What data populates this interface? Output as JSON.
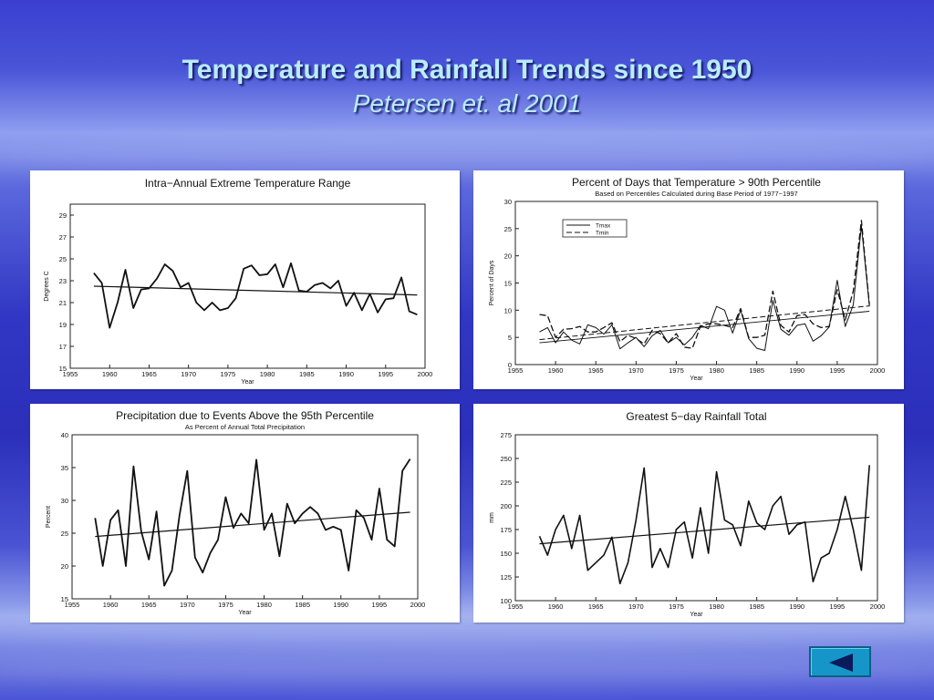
{
  "slide": {
    "title": "Temperature and Rainfall Trends since 1950",
    "subtitle": "Petersen et. al 2001",
    "back_icon": "left-triangle-icon"
  },
  "chart_data": [
    {
      "type": "line",
      "title": "Intra−Annual Extreme Temperature Range",
      "xlabel": "Year",
      "ylabel": "Degrees C",
      "xlim": [
        1955,
        2000
      ],
      "ylim": [
        15,
        30
      ],
      "xticks": [
        1955,
        1960,
        1965,
        1970,
        1975,
        1980,
        1985,
        1990,
        1995,
        2000
      ],
      "yticks": [
        15,
        17,
        19,
        21,
        23,
        25,
        27,
        29
      ],
      "grid": false,
      "series": [
        {
          "x": [
            1958,
            1959,
            1960,
            1961,
            1962,
            1963,
            1964,
            1965,
            1966,
            1967,
            1968,
            1969,
            1970,
            1971,
            1972,
            1973,
            1974,
            1975,
            1976,
            1977,
            1978,
            1979,
            1980,
            1981,
            1982,
            1983,
            1984,
            1985,
            1986,
            1987,
            1988,
            1989,
            1990,
            1991,
            1992,
            1993,
            1994,
            1995,
            1996,
            1997,
            1998,
            1999
          ],
          "y": [
            23.7,
            22.8,
            18.7,
            21.0,
            24.0,
            20.5,
            22.2,
            22.3,
            23.2,
            24.5,
            23.9,
            22.4,
            22.8,
            21.0,
            20.3,
            21.0,
            20.3,
            20.5,
            21.4,
            24.1,
            24.4,
            23.5,
            23.6,
            24.5,
            22.4,
            24.6,
            22.1,
            22.0,
            22.6,
            22.8,
            22.3,
            23.0,
            20.7,
            21.9,
            20.3,
            21.8,
            20.1,
            21.3,
            21.4,
            23.3,
            20.2,
            19.9
          ]
        },
        {
          "x": [
            1958,
            1999
          ],
          "y": [
            22.5,
            21.7
          ]
        }
      ]
    },
    {
      "type": "line",
      "title": "Percent of Days that Temperature > 90th Percentile",
      "subtitle": "Based on Percentiles Calculated during Base Period of 1977−1997",
      "xlabel": "Year",
      "ylabel": "Percent of Days",
      "xlim": [
        1955,
        2000
      ],
      "ylim": [
        0,
        30
      ],
      "xticks": [
        1955,
        1960,
        1965,
        1970,
        1975,
        1980,
        1985,
        1990,
        1995,
        2000
      ],
      "yticks": [
        0,
        5,
        10,
        15,
        20,
        25,
        30
      ],
      "grid": false,
      "legend": {
        "position": "top-left",
        "entries": [
          "Tmax",
          "Tmin"
        ]
      },
      "series": [
        {
          "name": "Tmax",
          "x": [
            1958,
            1959,
            1960,
            1961,
            1962,
            1963,
            1964,
            1965,
            1966,
            1967,
            1968,
            1969,
            1970,
            1971,
            1972,
            1973,
            1974,
            1975,
            1976,
            1977,
            1978,
            1979,
            1980,
            1981,
            1982,
            1983,
            1984,
            1985,
            1986,
            1987,
            1988,
            1989,
            1990,
            1991,
            1992,
            1993,
            1994,
            1995,
            1996,
            1997,
            1998,
            1999
          ],
          "y": [
            6.0,
            6.8,
            4.0,
            6.0,
            4.5,
            3.8,
            7.3,
            6.8,
            5.6,
            7.3,
            2.9,
            4.0,
            5.0,
            3.3,
            5.3,
            6.3,
            4.0,
            5.0,
            3.6,
            5.0,
            7.2,
            6.6,
            10.7,
            10.0,
            5.8,
            10.0,
            4.8,
            3.0,
            2.6,
            11.8,
            6.5,
            5.4,
            7.2,
            7.5,
            4.3,
            5.3,
            6.9,
            15.5,
            7.0,
            11.0,
            25.5,
            10.7
          ]
        },
        {
          "name": "Tmin",
          "x": [
            1958,
            1959,
            1960,
            1961,
            1962,
            1963,
            1964,
            1965,
            1966,
            1967,
            1968,
            1969,
            1970,
            1971,
            1972,
            1973,
            1974,
            1975,
            1976,
            1977,
            1978,
            1979,
            1980,
            1981,
            1982,
            1983,
            1984,
            1985,
            1986,
            1987,
            1988,
            1989,
            1990,
            1991,
            1992,
            1993,
            1994,
            1995,
            1996,
            1997,
            1998,
            1999
          ],
          "y": [
            9.2,
            9.0,
            5.0,
            6.5,
            6.6,
            7.0,
            6.0,
            6.0,
            6.8,
            7.7,
            4.2,
            5.4,
            4.8,
            3.8,
            6.3,
            5.7,
            4.0,
            5.7,
            3.2,
            3.0,
            7.0,
            7.5,
            7.5,
            7.2,
            6.8,
            10.3,
            5.0,
            5.0,
            5.4,
            13.5,
            7.2,
            6.0,
            9.0,
            9.2,
            7.5,
            6.8,
            7.0,
            13.8,
            8.2,
            13.5,
            26.5,
            11.0
          ]
        },
        {
          "name": "Tmax trend",
          "x": [
            1958,
            1999
          ],
          "y": [
            4.0,
            9.8
          ]
        },
        {
          "name": "Tmin trend",
          "x": [
            1958,
            1999
          ],
          "y": [
            4.6,
            10.8
          ]
        }
      ]
    },
    {
      "type": "line",
      "title": "Precipitation due to Events Above the 95th Percentile",
      "subtitle": "As Percent of Annual Total Precipitation",
      "xlabel": "Year",
      "ylabel": "Percent",
      "xlim": [
        1955,
        2000
      ],
      "ylim": [
        15,
        40
      ],
      "xticks": [
        1955,
        1960,
        1965,
        1970,
        1975,
        1980,
        1985,
        1990,
        1995,
        2000
      ],
      "yticks": [
        15,
        20,
        25,
        30,
        35,
        40
      ],
      "grid": false,
      "series": [
        {
          "x": [
            1958,
            1959,
            1960,
            1961,
            1962,
            1963,
            1964,
            1965,
            1966,
            1967,
            1968,
            1969,
            1970,
            1971,
            1972,
            1973,
            1974,
            1975,
            1976,
            1977,
            1978,
            1979,
            1980,
            1981,
            1982,
            1983,
            1984,
            1985,
            1986,
            1987,
            1988,
            1989,
            1990,
            1991,
            1992,
            1993,
            1994,
            1995,
            1996,
            1997,
            1998,
            1999
          ],
          "y": [
            27.3,
            20.0,
            27.0,
            28.5,
            20.0,
            35.2,
            25.3,
            21.0,
            28.3,
            17.0,
            19.3,
            27.8,
            34.5,
            21.3,
            19.0,
            22.0,
            24.0,
            30.5,
            25.8,
            28.0,
            26.5,
            36.2,
            25.5,
            28.0,
            21.5,
            29.5,
            26.5,
            28.0,
            29.0,
            28.0,
            25.5,
            26.0,
            25.5,
            19.3,
            28.5,
            27.3,
            24.0,
            31.8,
            24.0,
            23.0,
            34.5,
            36.3
          ]
        },
        {
          "x": [
            1958,
            1999
          ],
          "y": [
            24.5,
            28.2
          ]
        }
      ]
    },
    {
      "type": "line",
      "title": "Greatest 5−day Rainfall Total",
      "xlabel": "Year",
      "ylabel": "mm",
      "xlim": [
        1955,
        2000
      ],
      "ylim": [
        100,
        275
      ],
      "xticks": [
        1955,
        1960,
        1965,
        1970,
        1975,
        1980,
        1985,
        1990,
        1995,
        2000
      ],
      "yticks": [
        100,
        125,
        150,
        175,
        200,
        225,
        250,
        275
      ],
      "grid": false,
      "series": [
        {
          "x": [
            1958,
            1959,
            1960,
            1961,
            1962,
            1963,
            1964,
            1965,
            1966,
            1967,
            1968,
            1969,
            1970,
            1971,
            1972,
            1973,
            1974,
            1975,
            1976,
            1977,
            1978,
            1979,
            1980,
            1981,
            1982,
            1983,
            1984,
            1985,
            1986,
            1987,
            1988,
            1989,
            1990,
            1991,
            1992,
            1993,
            1994,
            1995,
            1996,
            1997,
            1998,
            1999
          ],
          "y": [
            168,
            148,
            175,
            190,
            155,
            190,
            132,
            140,
            148,
            167,
            118,
            140,
            185,
            240,
            135,
            155,
            135,
            175,
            183,
            145,
            198,
            150,
            236,
            185,
            180,
            158,
            205,
            182,
            175,
            200,
            210,
            170,
            180,
            183,
            120,
            145,
            150,
            175,
            210,
            175,
            132,
            243
          ]
        },
        {
          "x": [
            1958,
            1999
          ],
          "y": [
            160,
            188
          ]
        }
      ]
    }
  ]
}
